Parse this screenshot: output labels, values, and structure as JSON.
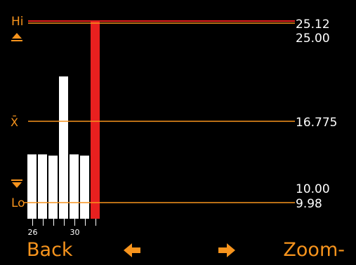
{
  "gauge": {
    "hi_label": "Hi",
    "lo_label": "Lo",
    "mean_label": "X̄",
    "upper_tol_icon": "upper-tolerance-icon",
    "lower_tol_icon": "lower-tolerance-icon",
    "values": {
      "hi": "25.12",
      "upper_tol": "25.00",
      "mean": "16.775",
      "lower_tol": "10.00",
      "lo": "9.98"
    }
  },
  "chart_data": {
    "type": "bar",
    "categories": [
      26,
      27,
      28,
      29,
      30,
      31,
      32
    ],
    "values": [
      14.0,
      14.0,
      13.9,
      20.5,
      14.0,
      13.9,
      25.12
    ],
    "highlight_index": 6,
    "y_range": [
      9.98,
      25.12
    ],
    "tick_labels": [
      "26",
      "30"
    ],
    "colors": {
      "bar": "#ffffff",
      "highlight": "#e8201f",
      "line": "#f7941d",
      "limit": "#e8201f"
    }
  },
  "softkeys": {
    "back": "Back",
    "left_icon": "arrow-left-icon",
    "right_icon": "arrow-right-icon",
    "zoom": "Zoom-"
  }
}
